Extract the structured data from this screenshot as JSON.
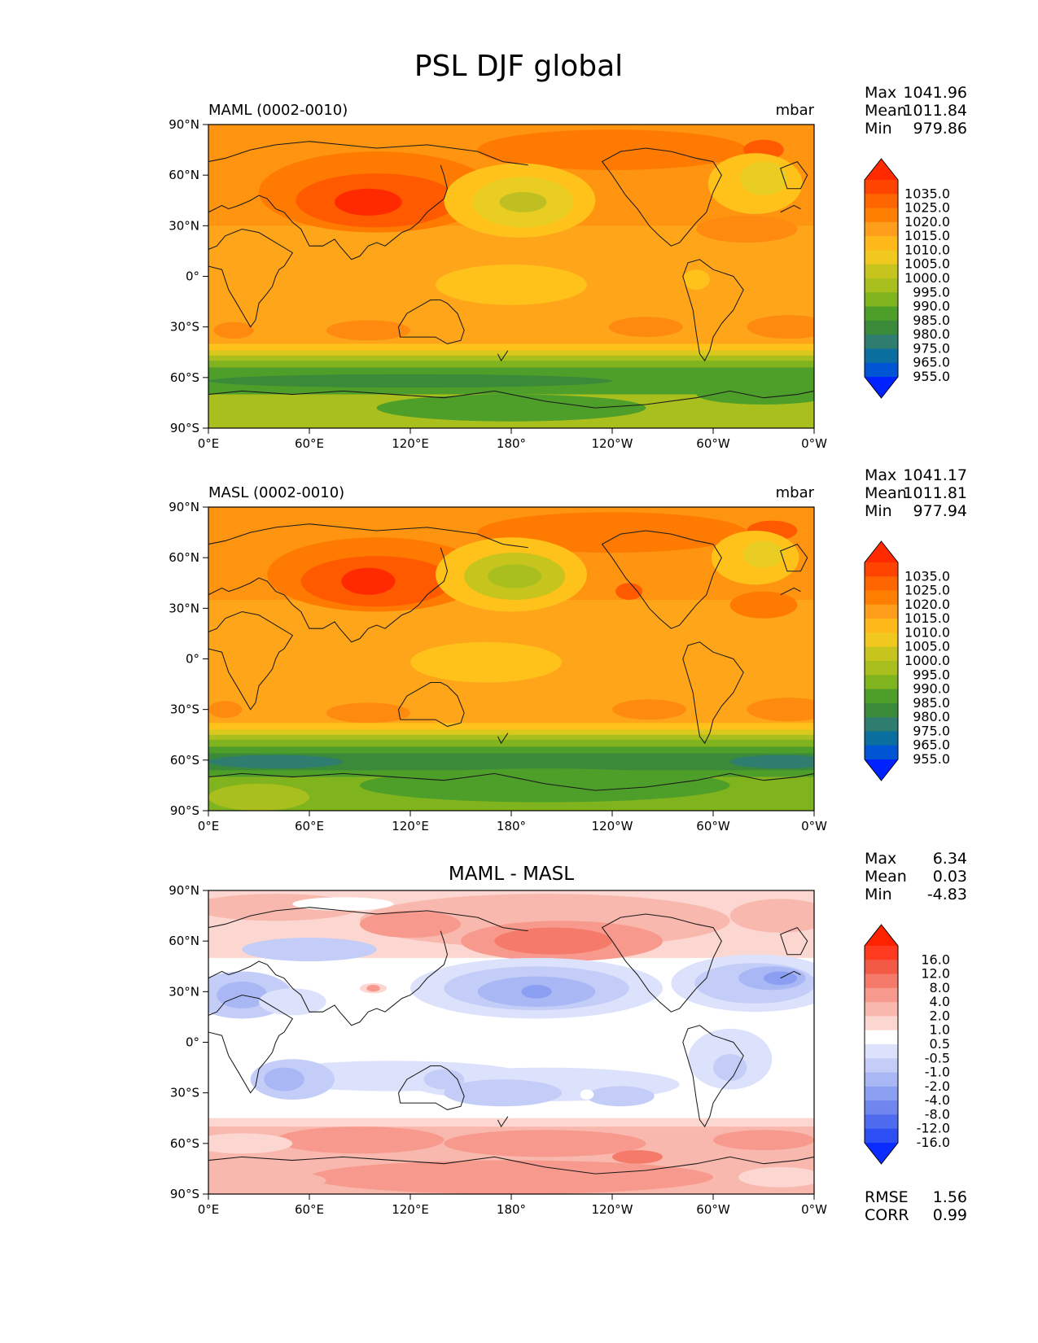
{
  "figure": {
    "title": "PSL DJF global",
    "lat_ticks": [
      "90°N",
      "60°N",
      "30°N",
      "0°",
      "30°S",
      "60°S",
      "90°S"
    ],
    "lon_ticks": [
      "0°E",
      "60°E",
      "120°E",
      "180°",
      "120°W",
      "60°W",
      "0°W"
    ]
  },
  "panels": [
    {
      "title_left": "MAML (0002-0010)",
      "title_center": "",
      "units": "mbar",
      "stats": [
        {
          "label": "Max",
          "value": "1041.96"
        },
        {
          "label": "Mean",
          "value": "1011.84"
        },
        {
          "label": "Min",
          "value": "979.86"
        }
      ],
      "bottom_stats": [],
      "colorbar": {
        "labels": [
          "1035.0",
          "1025.0",
          "1020.0",
          "1015.0",
          "1010.0",
          "1005.0",
          "1000.0",
          "995.0",
          "990.0",
          "985.0",
          "980.0",
          "975.0",
          "965.0",
          "955.0"
        ],
        "colors": [
          "#ff2a00",
          "#ff4400",
          "#ff6600",
          "#ff8000",
          "#ff9e1a",
          "#ffb81a",
          "#f0c81e",
          "#c8c41e",
          "#a8bf1e",
          "#80b41e",
          "#4e9e2a",
          "#3a8a3a",
          "#2e7d6e",
          "#0a6e9e",
          "#0055d4",
          "#0022ff"
        ]
      }
    },
    {
      "title_left": "MASL (0002-0010)",
      "title_center": "",
      "units": "mbar",
      "stats": [
        {
          "label": "Max",
          "value": "1041.17"
        },
        {
          "label": "Mean",
          "value": "1011.81"
        },
        {
          "label": "Min",
          "value": "977.94"
        }
      ],
      "bottom_stats": [],
      "colorbar": {
        "labels": [
          "1035.0",
          "1025.0",
          "1020.0",
          "1015.0",
          "1010.0",
          "1005.0",
          "1000.0",
          "995.0",
          "990.0",
          "985.0",
          "980.0",
          "975.0",
          "965.0",
          "955.0"
        ],
        "colors": [
          "#ff2a00",
          "#ff4400",
          "#ff6600",
          "#ff8000",
          "#ff9e1a",
          "#ffb81a",
          "#f0c81e",
          "#c8c41e",
          "#a8bf1e",
          "#80b41e",
          "#4e9e2a",
          "#3a8a3a",
          "#2e7d6e",
          "#0a6e9e",
          "#0055d4",
          "#0022ff"
        ]
      }
    },
    {
      "title_left": "",
      "title_center": "MAML - MASL",
      "units": "",
      "stats": [
        {
          "label": "Max",
          "value": "6.34"
        },
        {
          "label": "Mean",
          "value": "0.03"
        },
        {
          "label": "Min",
          "value": "-4.83"
        }
      ],
      "bottom_stats": [
        {
          "label": "RMSE",
          "value": "1.56"
        },
        {
          "label": "CORR",
          "value": "0.99"
        }
      ],
      "colorbar": {
        "labels": [
          "16.0",
          "12.0",
          "8.0",
          "4.0",
          "2.0",
          "1.0",
          "0.5",
          "-0.5",
          "-1.0",
          "-2.0",
          "-4.0",
          "-8.0",
          "-12.0",
          "-16.0"
        ],
        "colors": [
          "#ff2200",
          "#ff3a1e",
          "#f25a46",
          "#f57a6a",
          "#f7998c",
          "#f9b8ae",
          "#fcd6d0",
          "#ffffff",
          "#dce2fb",
          "#c4cdf8",
          "#a9b7f5",
          "#8a9ff2",
          "#6f86ef",
          "#4e6aee",
          "#2d4ef2",
          "#0a2cff"
        ]
      }
    }
  ]
}
